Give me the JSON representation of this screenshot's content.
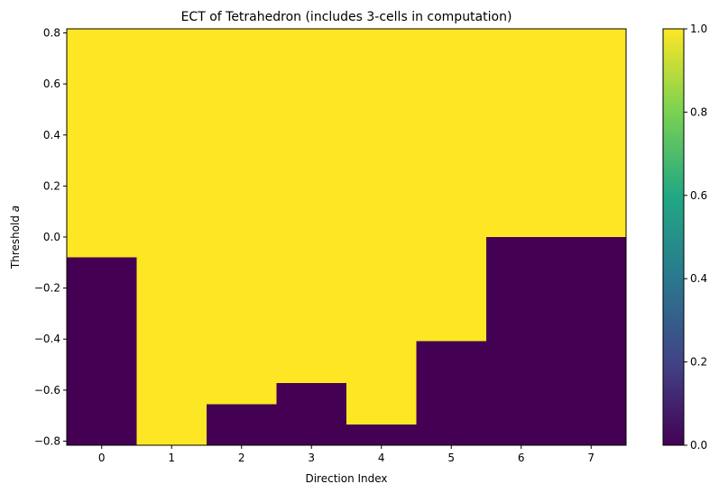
{
  "chart_data": {
    "type": "heatmap",
    "title": "ECT of Tetrahedron (includes 3-cells in computation)",
    "xlabel": "Direction Index",
    "ylabel_text": "Threshold ",
    "ylabel_var": "a",
    "xlim": [
      -0.5,
      7.5
    ],
    "ylim": [
      -0.816,
      0.816
    ],
    "x_ticks": [
      0,
      1,
      2,
      3,
      4,
      5,
      6,
      7
    ],
    "x_tick_labels": [
      "0",
      "1",
      "2",
      "3",
      "4",
      "5",
      "6",
      "7"
    ],
    "y_ticks": [
      -0.8,
      -0.6,
      -0.4,
      -0.2,
      0.0,
      0.2,
      0.4,
      0.6,
      0.8
    ],
    "y_tick_labels": [
      "−0.8",
      "−0.6",
      "−0.4",
      "−0.2",
      "0.0",
      "0.2",
      "0.4",
      "0.6",
      "0.8"
    ],
    "directions": [
      0,
      1,
      2,
      3,
      4,
      5,
      6,
      7
    ],
    "value_below_threshold": 0,
    "value_above_threshold": 1,
    "transition_threshold": [
      -0.08,
      -0.816,
      -0.655,
      -0.573,
      -0.735,
      -0.408,
      0.0,
      0.0
    ],
    "colormap": "viridis",
    "colorbar_range": [
      0.0,
      1.0
    ],
    "colorbar_ticks": [
      0.0,
      0.2,
      0.4,
      0.6,
      0.8,
      1.0
    ],
    "colorbar_tick_labels": [
      "0.0",
      "0.2",
      "0.4",
      "0.6",
      "0.8",
      "1.0"
    ],
    "low_color": "#440154",
    "high_color": "#fde725",
    "viridis_stops": [
      "#440154",
      "#414487",
      "#2a788e",
      "#22a884",
      "#7ad151",
      "#fde725"
    ],
    "grid": false
  }
}
